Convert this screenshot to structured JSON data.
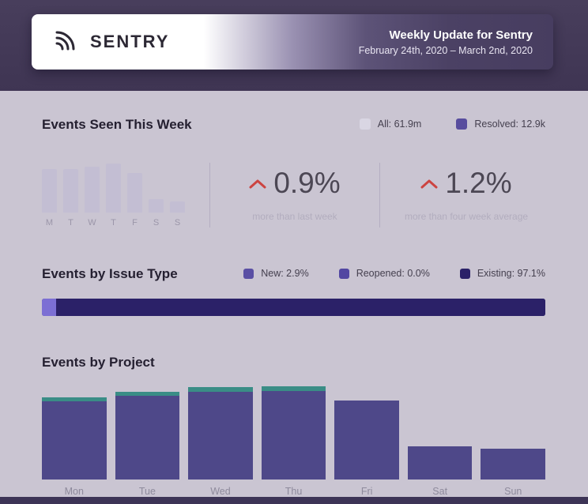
{
  "header": {
    "logo_text": "SENTRY",
    "title": "Weekly Update for Sentry",
    "date_range": "February 24th, 2020 – March 2nd, 2020"
  },
  "sections": {
    "events_seen": {
      "heading": "Events Seen This Week",
      "legend": [
        {
          "label": "All: 61.9m",
          "color": "#d9d6e3"
        },
        {
          "label": "Resolved: 12.9k",
          "color": "#584d9e"
        }
      ],
      "stats": [
        {
          "value": "0.9%",
          "caption": "more than last week"
        },
        {
          "value": "1.2%",
          "caption": "more than four week average"
        }
      ]
    },
    "issue_type": {
      "heading": "Events by Issue Type",
      "legend": [
        {
          "label": "New: 2.9%",
          "color": "#5a4fa4"
        },
        {
          "label": "Reopened: 0.0%",
          "color": "#5247a2"
        },
        {
          "label": "Existing: 97.1%",
          "color": "#2b2168"
        }
      ]
    },
    "by_project": {
      "heading": "Events by Project"
    }
  },
  "chart_data": [
    {
      "id": "events-seen-week",
      "type": "bar",
      "title": "Events Seen This Week",
      "categories": [
        "M",
        "T",
        "W",
        "T",
        "F",
        "S",
        "S"
      ],
      "values": [
        88,
        88,
        93,
        100,
        80,
        27,
        22
      ],
      "bar_color": "#c3bed3",
      "ylim": [
        0,
        100
      ],
      "grid": false
    },
    {
      "id": "events-by-issue-type",
      "type": "bar",
      "orientation": "horizontal-stacked",
      "title": "Events by Issue Type",
      "segments": [
        {
          "label": "New",
          "pct": 2.9,
          "color": "#7c6fd4"
        },
        {
          "label": "Reopened",
          "pct": 0.0,
          "color": "#5a4fae"
        },
        {
          "label": "Existing",
          "pct": 97.1,
          "color": "#2b2168"
        }
      ]
    },
    {
      "id": "events-by-project",
      "type": "bar",
      "title": "Events by Project",
      "categories": [
        "Mon",
        "Tue",
        "Wed",
        "Thu",
        "Fri",
        "Sat",
        "Sun"
      ],
      "series": [
        {
          "name": "base",
          "color": "#4e4889",
          "values": [
            84,
            90,
            94,
            95,
            85,
            36,
            33
          ]
        },
        {
          "name": "cap",
          "color": "#3a8d86",
          "values": [
            4,
            4,
            5,
            5,
            0,
            0,
            0
          ]
        }
      ],
      "ylim": [
        0,
        100
      ],
      "grid": false
    }
  ],
  "accents": {
    "delta_up": "#cc4441",
    "header_band": "#423a56",
    "page_background": "#cac5d2"
  }
}
